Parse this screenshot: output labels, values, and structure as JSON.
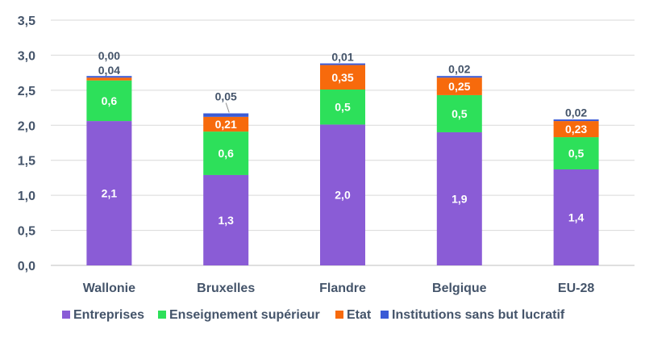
{
  "chart_data": {
    "type": "bar",
    "stacked": true,
    "categories": [
      "Wallonie",
      "Bruxelles",
      "Flandre",
      "Belgique",
      "EU-28"
    ],
    "series": [
      {
        "name": "Entreprises",
        "color": "#8a5cd6",
        "values": [
          2.06,
          1.29,
          2.01,
          1.9,
          1.37
        ],
        "labels": [
          "2,1",
          "1,3",
          "2,0",
          "1,9",
          "1,4"
        ]
      },
      {
        "name": "Enseignement supérieur",
        "color": "#2de05a",
        "values": [
          0.58,
          0.62,
          0.5,
          0.53,
          0.46
        ],
        "labels": [
          "0,6",
          "0,6",
          "0,5",
          "0,5",
          "0,5"
        ]
      },
      {
        "name": "Etat",
        "color": "#f76a0c",
        "values": [
          0.04,
          0.21,
          0.35,
          0.25,
          0.23
        ],
        "labels": [
          "0,04",
          "0,21",
          "0,35",
          "0,25",
          "0,23"
        ]
      },
      {
        "name": "Institutions sans but lucratif",
        "color": "#3b5bd6",
        "values": [
          0.0,
          0.05,
          0.01,
          0.02,
          0.02
        ],
        "labels": [
          "0,00",
          "0,05",
          "0,01",
          "0,02",
          "0,02"
        ]
      }
    ],
    "yticks": [
      "0,0",
      "0,5",
      "1,0",
      "1,5",
      "2,0",
      "2,5",
      "3,0",
      "3,5"
    ],
    "ylim": [
      0,
      3.5
    ],
    "grid": true,
    "legend": "bottom"
  }
}
